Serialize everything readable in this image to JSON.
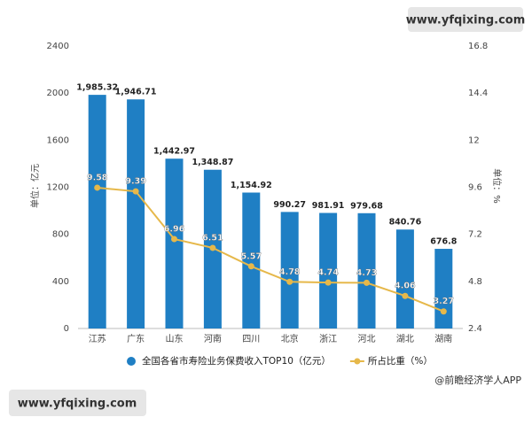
{
  "chart_data": {
    "type": "bar-line",
    "categories": [
      "江苏",
      "广东",
      "山东",
      "河南",
      "四川",
      "北京",
      "浙江",
      "河北",
      "湖北",
      "湖南"
    ],
    "series": [
      {
        "name": "全国各省市寿险业务保费收入TOP10（亿元）",
        "color": "#1f7fc4",
        "type": "bar",
        "values": [
          1985.32,
          1946.71,
          1442.97,
          1348.87,
          1154.92,
          990.27,
          981.91,
          979.68,
          840.76,
          676.8
        ],
        "value_labels": [
          "1,985.32",
          "1,946.71",
          "1,442.97",
          "1,348.87",
          "1,154.92",
          "990.27",
          "981.91",
          "979.68",
          "840.76",
          "676.8"
        ]
      },
      {
        "name": "所占比重（%）",
        "color": "#e6b84a",
        "type": "line",
        "axis": "y2",
        "values": [
          9.58,
          9.39,
          6.96,
          6.51,
          5.57,
          4.78,
          4.74,
          4.73,
          4.06,
          3.27
        ]
      }
    ],
    "ylabel": "单位：亿元",
    "y2label": "单位：%",
    "ylim": [
      0,
      2400
    ],
    "yticks": [
      0,
      400,
      800,
      1200,
      1600,
      2000,
      2400
    ],
    "y2lim": [
      2.4,
      16.8
    ],
    "y2ticks": [
      2.4,
      4.8,
      7.2,
      9.6,
      12,
      14.4,
      16.8
    ],
    "grid": false,
    "watermarks": [
      "www.yfqixing.com",
      "www.yfqixing.com"
    ],
    "source": "@前瞻经济学人APP"
  }
}
